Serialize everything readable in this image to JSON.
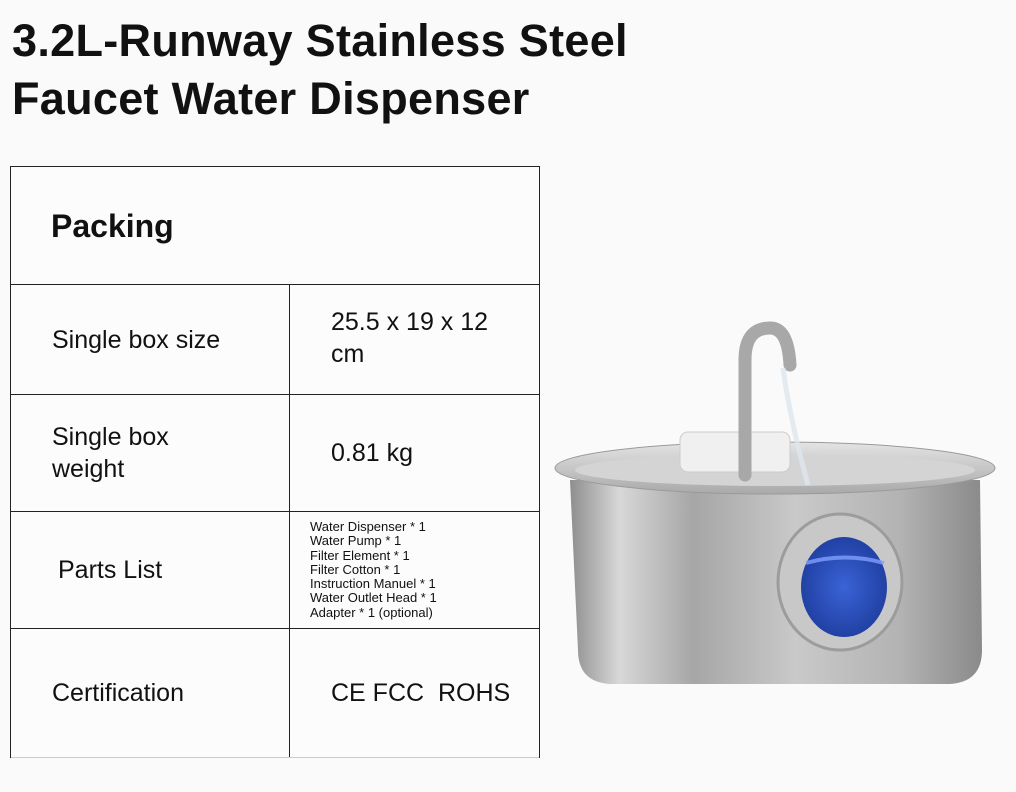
{
  "title": {
    "line1": "3.2L-Runway Stainless Steel",
    "line2": "Faucet Water Dispenser"
  },
  "table": {
    "heading": "Packing",
    "rows": [
      {
        "label": "Single box size",
        "value_line1": "25.5 x 19 x 12",
        "value_line2": "cm"
      },
      {
        "label_line1": "Single box",
        "label_line2": "weight",
        "value": "0.81 kg"
      },
      {
        "label": "Parts List",
        "items": [
          "Water Dispenser * 1",
          "Water Pump * 1",
          "Filter Element * 1",
          "Filter Cotton * 1",
          "Instruction Manuel * 1",
          "Water Outlet Head * 1",
          "Adapter * 1 (optional)"
        ]
      },
      {
        "label": "Certification",
        "value": "CE FCC  ROHS"
      }
    ]
  },
  "product_image": {
    "icon": "stainless-steel-water-fountain",
    "window_color": "#2a55c8",
    "steel_color": "#b5b5b5"
  }
}
